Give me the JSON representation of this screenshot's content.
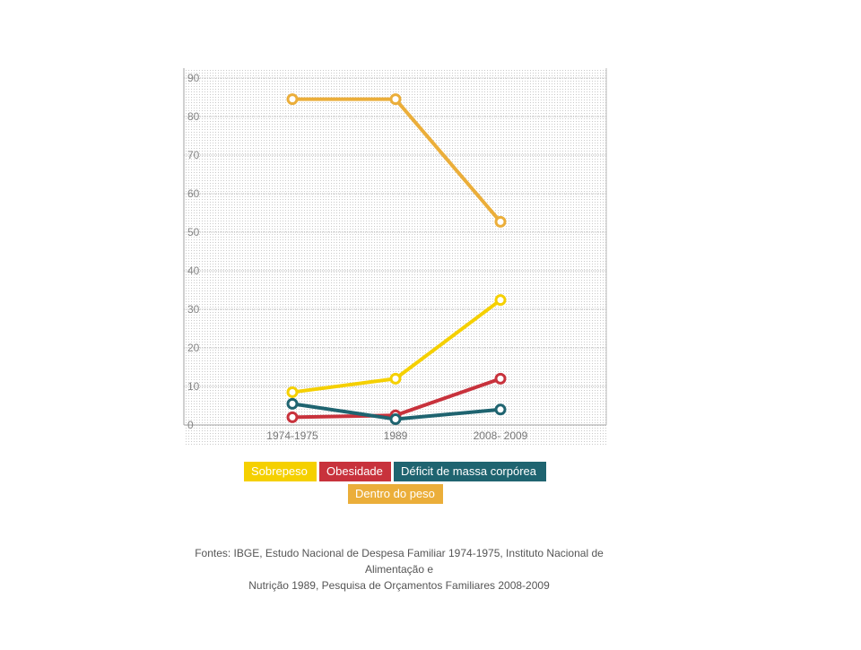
{
  "chart_data": {
    "type": "line",
    "categories": [
      "1974-1975",
      "1989",
      "2008- 2009"
    ],
    "ylim": [
      0,
      90
    ],
    "yticks": [
      0,
      10,
      20,
      30,
      40,
      50,
      60,
      70,
      80,
      90
    ],
    "grid": true,
    "legend_position": "bottom",
    "series": [
      {
        "name": "Dentro do peso",
        "color": "#EBAE3A",
        "values": [
          84.5,
          84.5,
          52.7
        ]
      },
      {
        "name": "Sobrepeso",
        "color": "#F5D000",
        "values": [
          8.5,
          12,
          32.4
        ]
      },
      {
        "name": "Obesidade",
        "color": "#C8323C",
        "values": [
          2,
          2.5,
          12.0
        ]
      },
      {
        "name": "Déficit de massa corpórea",
        "color": "#1F6470",
        "values": [
          5.5,
          1.5,
          4.0
        ]
      }
    ]
  },
  "legend": {
    "sobrepeso": "Sobrepeso",
    "obesidade": "Obesidade",
    "deficit": "Déficit de massa corpórea",
    "dentro": "Dentro do peso"
  },
  "source_line1": "Fontes: IBGE, Estudo Nacional de Despesa Familiar 1974-1975, Instituto Nacional de Alimentação e",
  "source_line2": "Nutrição 1989, Pesquisa de Orçamentos Familiares 2008-2009"
}
